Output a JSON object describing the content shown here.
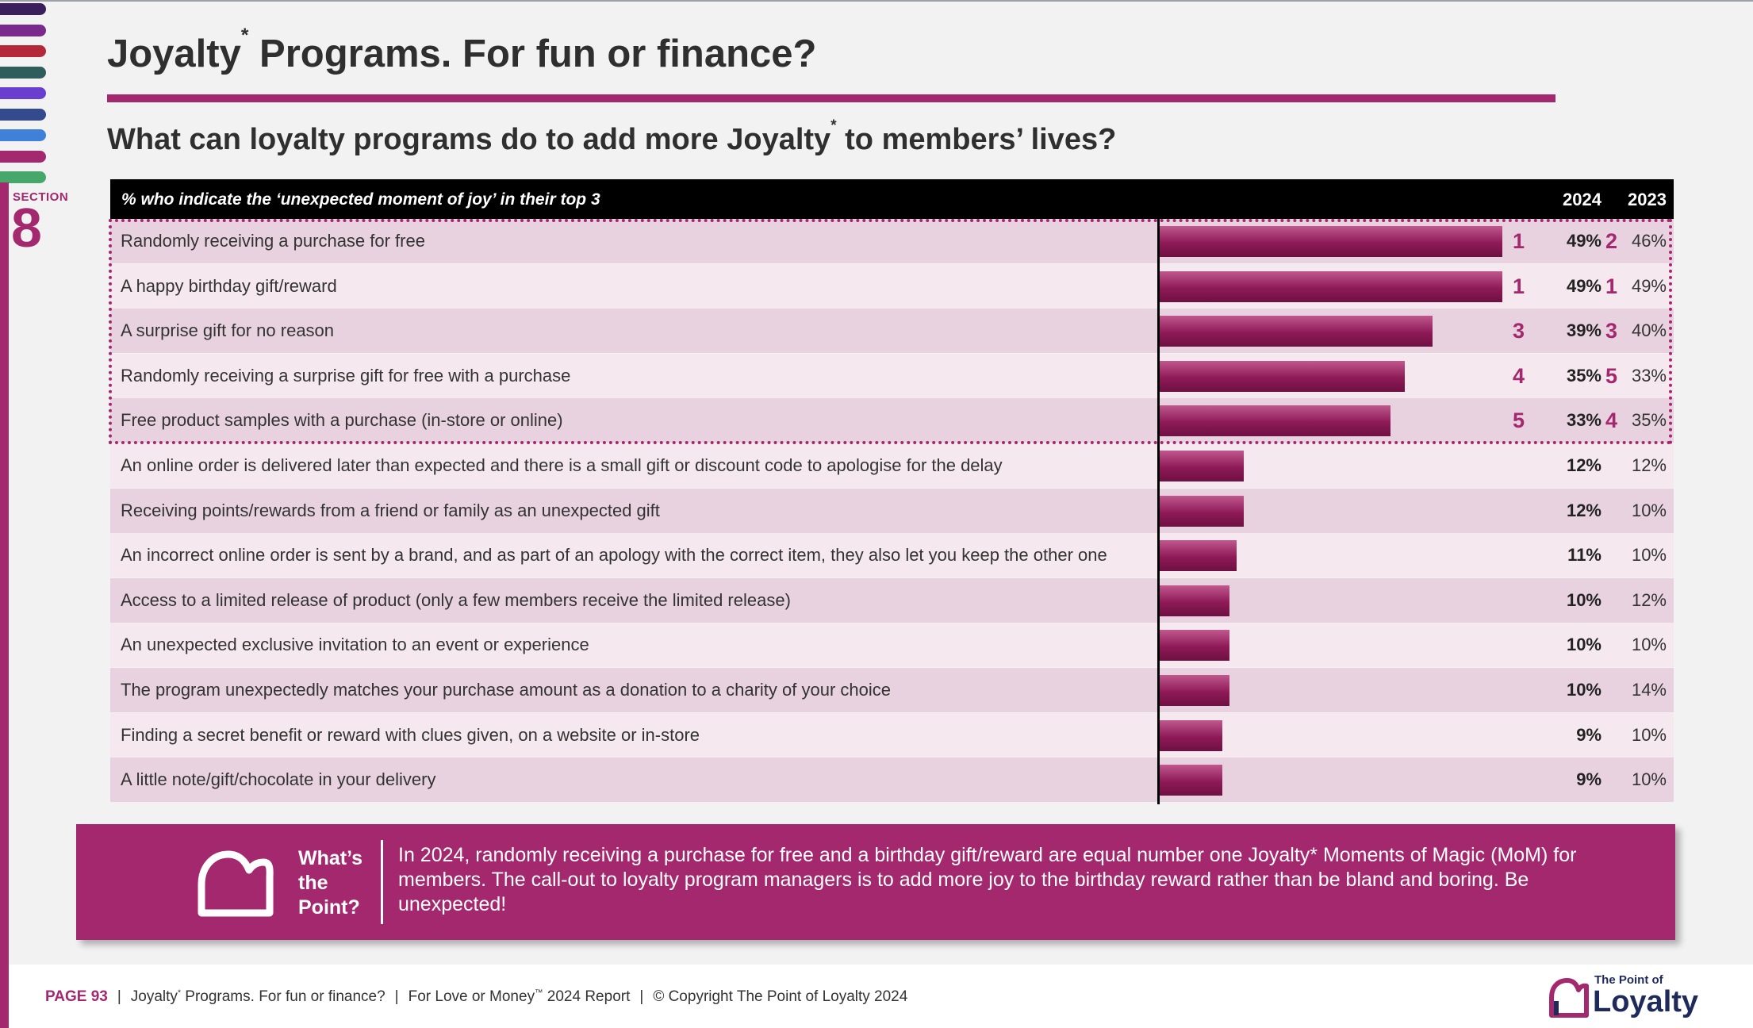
{
  "section": {
    "label": "SECTION",
    "number": "8"
  },
  "title": {
    "text": "Joyalty",
    "sup": "*",
    "rest": " Programs. For fun or finance?"
  },
  "subtitle": {
    "text": "What can loyalty programs do to add more Joyalty",
    "sup": "*",
    "rest": " to members’ lives?"
  },
  "chart_data": {
    "type": "bar",
    "orientation": "horizontal",
    "header": "% who indicate the ‘unexpected moment of joy’ in their top 3",
    "columns": [
      "2024",
      "2023"
    ],
    "categories": [
      "Randomly receiving a purchase for free",
      "A happy birthday gift/reward",
      "A surprise gift for no reason",
      "Randomly receiving a surprise gift for free with a purchase",
      "Free product samples with a purchase (in-store or online)",
      "An online order is delivered later than expected and there is a small gift or discount code to apologise for the delay",
      "Receiving points/rewards from a friend or family as an unexpected gift",
      "An incorrect online order is sent by a brand, and as part of an apology with the correct item, they also let you keep the other one",
      "Access to a limited release of product (only a few members receive the limited release)",
      "An unexpected exclusive invitation to an event or experience",
      "The program unexpectedly matches your purchase amount as a donation to a charity of your choice",
      "Finding a secret benefit or reward with clues given, on a website or in-store",
      "A little note/gift/chocolate in your delivery"
    ],
    "series": [
      {
        "name": "2024",
        "values": [
          49,
          49,
          39,
          35,
          33,
          12,
          12,
          11,
          10,
          10,
          10,
          9,
          9
        ]
      },
      {
        "name": "2023",
        "values": [
          46,
          49,
          40,
          33,
          35,
          12,
          10,
          10,
          12,
          10,
          14,
          10,
          10
        ]
      }
    ],
    "labels_2024": [
      "49%",
      "49%",
      "39%",
      "35%",
      "33%",
      "12%",
      "12%",
      "11%",
      "10%",
      "10%",
      "10%",
      "9%",
      "9%"
    ],
    "labels_2023": [
      "46%",
      "49%",
      "40%",
      "33%",
      "35%",
      "12%",
      "10%",
      "10%",
      "12%",
      "10%",
      "14%",
      "10%",
      "10%"
    ],
    "rank_2024": [
      "1",
      "1",
      "3",
      "4",
      "5",
      "",
      "",
      "",
      "",
      "",
      "",
      "",
      ""
    ],
    "rank_2023": [
      "2",
      "1",
      "3",
      "5",
      "4",
      "",
      "",
      "",
      "",
      "",
      "",
      "",
      ""
    ],
    "highlighted_top": 5,
    "xlim": [
      0,
      100
    ]
  },
  "callout": {
    "heading": [
      "What’s",
      "the",
      "Point?"
    ],
    "text": "In 2024, randomly receiving a purchase for free and a birthday gift/reward are equal number one Joyalty* Moments of Magic (MoM) for members. The call-out to loyalty program managers is to add more joy to the birthday reward rather than be bland and boring. Be unexpected!"
  },
  "footer": {
    "page": "PAGE 93",
    "part1": "Joyalty",
    "part1_sup": "*",
    "part1_rest": " Programs. For fun or finance?",
    "part2": "For Love or Money",
    "part2_sup": "™",
    "part2_rest": " 2024 Report",
    "part3": "© Copyright The Point of Loyalty 2024"
  },
  "logo": {
    "small": "The Point of",
    "big": "Loyalty"
  },
  "colors": {
    "accent": "#a3286e",
    "tabs": [
      "#3a1f5c",
      "#7a2a8c",
      "#b5283a",
      "#2e5d5c",
      "#6a3fd0",
      "#334a8f",
      "#3f80d8",
      "#a3286e",
      "#45a86a"
    ]
  }
}
